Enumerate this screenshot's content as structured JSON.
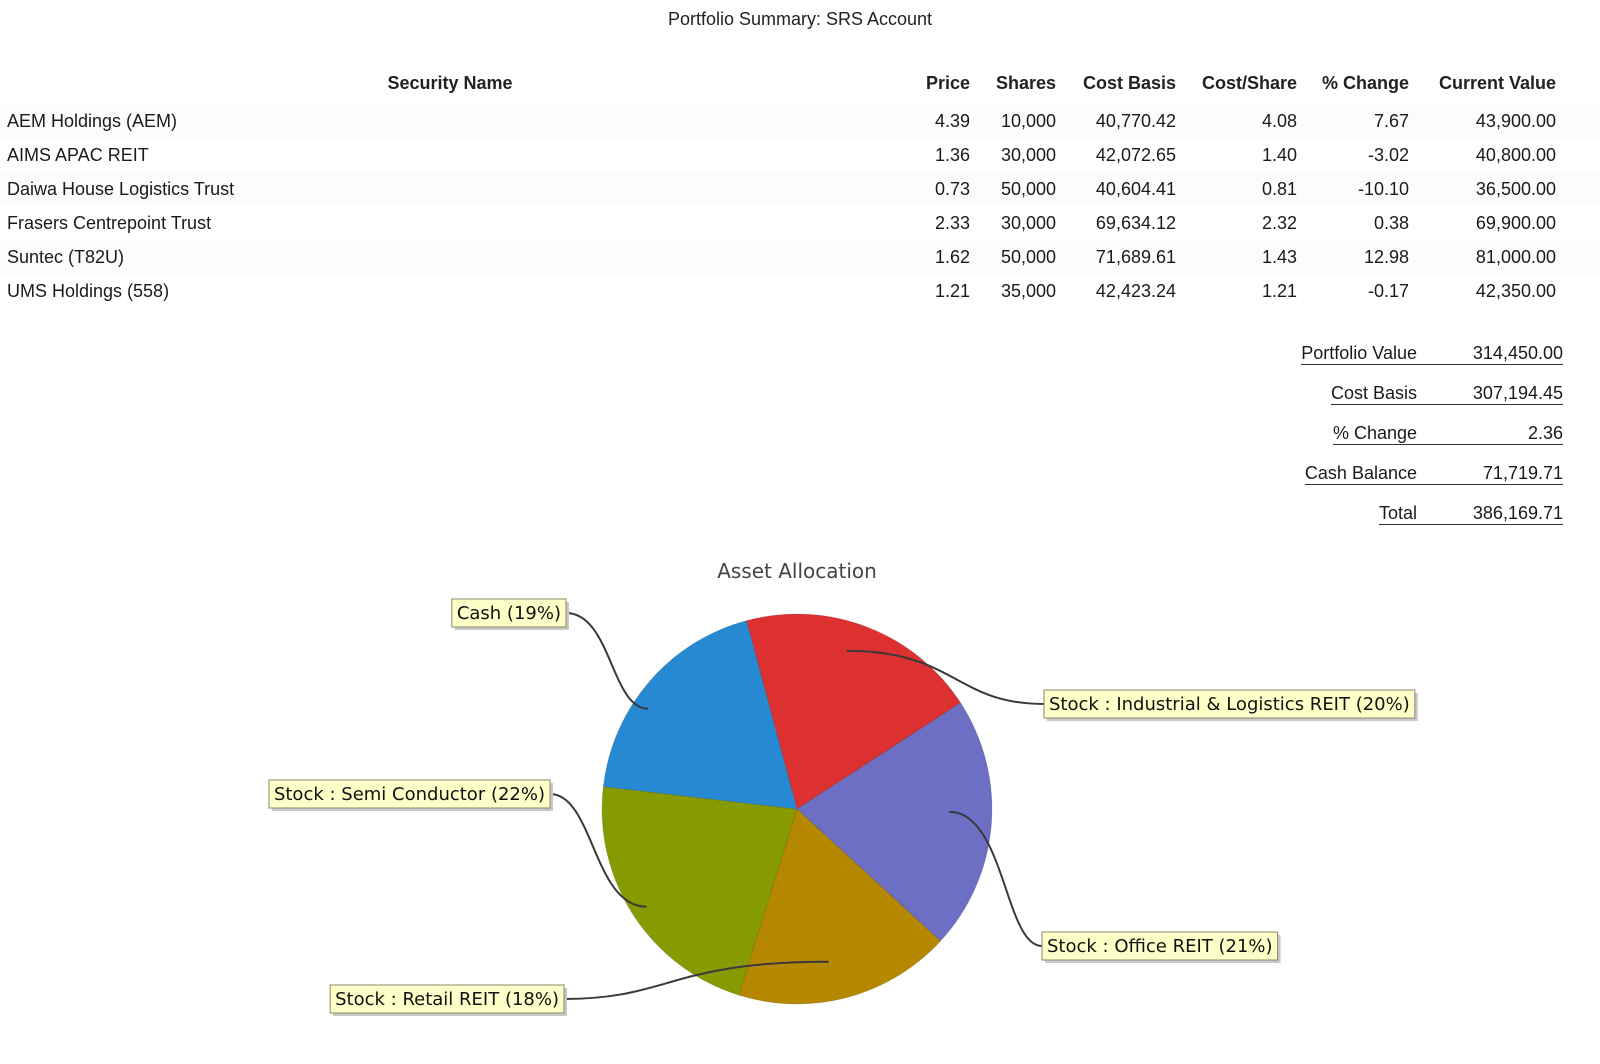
{
  "page": {
    "title": "Portfolio Summary: SRS Account"
  },
  "table": {
    "headers": [
      "Security Name",
      "Price",
      "Shares",
      "Cost Basis",
      "Cost/Share",
      "% Change",
      "Current Value"
    ],
    "rows": [
      [
        "AEM Holdings (AEM)",
        "4.39",
        "10,000",
        "40,770.42",
        "4.08",
        "7.67",
        "43,900.00"
      ],
      [
        "AIMS APAC REIT",
        "1.36",
        "30,000",
        "42,072.65",
        "1.40",
        "-3.02",
        "40,800.00"
      ],
      [
        "Daiwa House Logistics Trust",
        "0.73",
        "50,000",
        "40,604.41",
        "0.81",
        "-10.10",
        "36,500.00"
      ],
      [
        "Frasers Centrepoint Trust",
        "2.33",
        "30,000",
        "69,634.12",
        "2.32",
        "0.38",
        "69,900.00"
      ],
      [
        "Suntec (T82U)",
        "1.62",
        "50,000",
        "71,689.61",
        "1.43",
        "12.98",
        "81,000.00"
      ],
      [
        "UMS Holdings (558)",
        "1.21",
        "35,000",
        "42,423.24",
        "1.21",
        "-0.17",
        "42,350.00"
      ]
    ]
  },
  "summary": [
    {
      "label": "Portfolio Value",
      "value": "314,450.00"
    },
    {
      "label": "Cost Basis",
      "value": "307,194.45"
    },
    {
      "label": "% Change",
      "value": "2.36"
    },
    {
      "label": "Cash Balance",
      "value": "71,719.71"
    },
    {
      "label": "Total",
      "value": "386,169.71"
    }
  ],
  "chart_data": {
    "type": "pie",
    "title": "Asset Allocation",
    "slices": [
      {
        "label": "Stock : Industrial & Logistics REIT (20%)",
        "value": 20,
        "color": "#dd3030"
      },
      {
        "label": "Stock : Office REIT (21%)",
        "value": 21,
        "color": "#6c6fc4"
      },
      {
        "label": "Stock : Retail REIT (18%)",
        "value": 18,
        "color": "#b58800"
      },
      {
        "label": "Stock : Semi Conductor (22%)",
        "value": 22,
        "color": "#879a00"
      },
      {
        "label": "Cash (19%)",
        "value": 19,
        "color": "#2889d3"
      }
    ]
  }
}
